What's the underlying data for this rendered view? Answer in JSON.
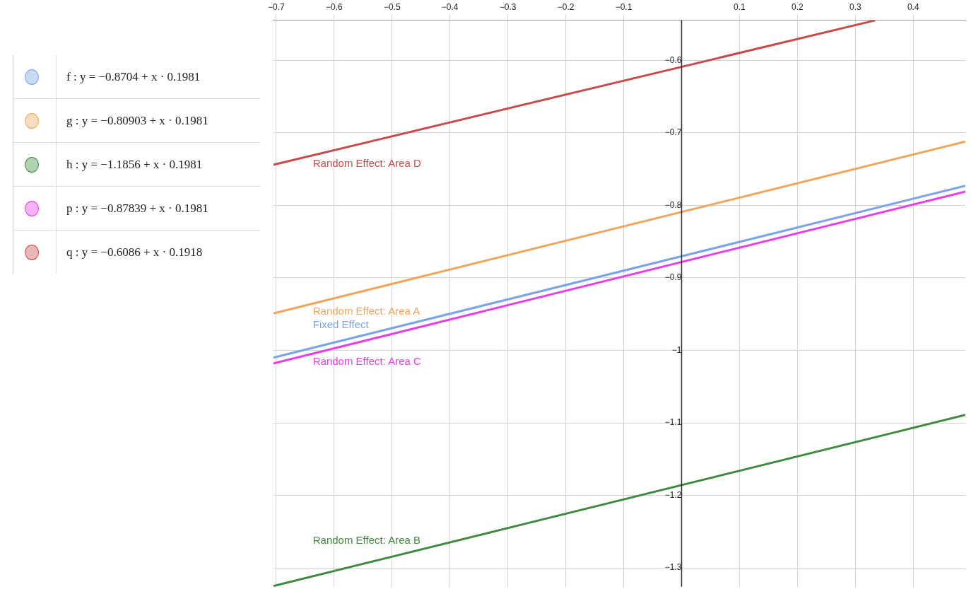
{
  "chart_data": {
    "type": "line",
    "xlim": [
      -0.705,
      0.49
    ],
    "ylim": [
      -1.326,
      -0.5445
    ],
    "xticks": [
      {
        "value": -0.7,
        "label": "−0.7"
      },
      {
        "value": -0.6,
        "label": "−0.6"
      },
      {
        "value": -0.5,
        "label": "−0.5"
      },
      {
        "value": -0.4,
        "label": "−0.4"
      },
      {
        "value": -0.3,
        "label": "−0.3"
      },
      {
        "value": -0.2,
        "label": "−0.2"
      },
      {
        "value": -0.1,
        "label": "−0.1"
      },
      {
        "value": 0.1,
        "label": "0.1"
      },
      {
        "value": 0.2,
        "label": "0.2"
      },
      {
        "value": 0.3,
        "label": "0.3"
      },
      {
        "value": 0.4,
        "label": "0.4"
      }
    ],
    "yticks": [
      {
        "value": -0.6,
        "label": "−0.6"
      },
      {
        "value": -0.7,
        "label": "−0.7"
      },
      {
        "value": -0.8,
        "label": "−0.8"
      },
      {
        "value": -0.9,
        "label": "−0.9"
      },
      {
        "value": -1,
        "label": "−1"
      },
      {
        "value": -1.1,
        "label": "−1.1"
      },
      {
        "value": -1.2,
        "label": "−1.2"
      },
      {
        "value": -1.3,
        "label": "−1.3"
      }
    ],
    "grid": true,
    "marker": "none",
    "line_style": "solid",
    "series": [
      {
        "name": "Fixed Effect",
        "color": "#7ba3e8",
        "x": [
          -0.705,
          0.49
        ],
        "values": [
          -1.01,
          -0.773
        ]
      },
      {
        "name": "Random Effect: Area A",
        "color": "#f0a65a",
        "x": [
          -0.705,
          0.49
        ],
        "values": [
          -0.949,
          -0.712
        ]
      },
      {
        "name": "Random Effect: Area B",
        "color": "#3f8a3f",
        "x": [
          -0.705,
          0.49
        ],
        "values": [
          -1.325,
          -1.089
        ]
      },
      {
        "name": "Random Effect: Area C",
        "color": "#e83ee8",
        "x": [
          -0.705,
          0.49
        ],
        "values": [
          -1.018,
          -0.781
        ]
      },
      {
        "name": "Random Effect: Area D",
        "color": "#c94a4a",
        "x": [
          -0.705,
          0.334
        ],
        "values": [
          -0.744,
          -0.545
        ]
      }
    ],
    "annotations": [
      "f : y = −0.8704 + x · 0.1981",
      "g : y = −0.80903 + x · 0.1981",
      "h : y = −1.1856 + x · 0.1981",
      "p : y = −0.87839 + x · 0.1981",
      "q : y = −0.6086 + x · 0.1918"
    ]
  }
}
